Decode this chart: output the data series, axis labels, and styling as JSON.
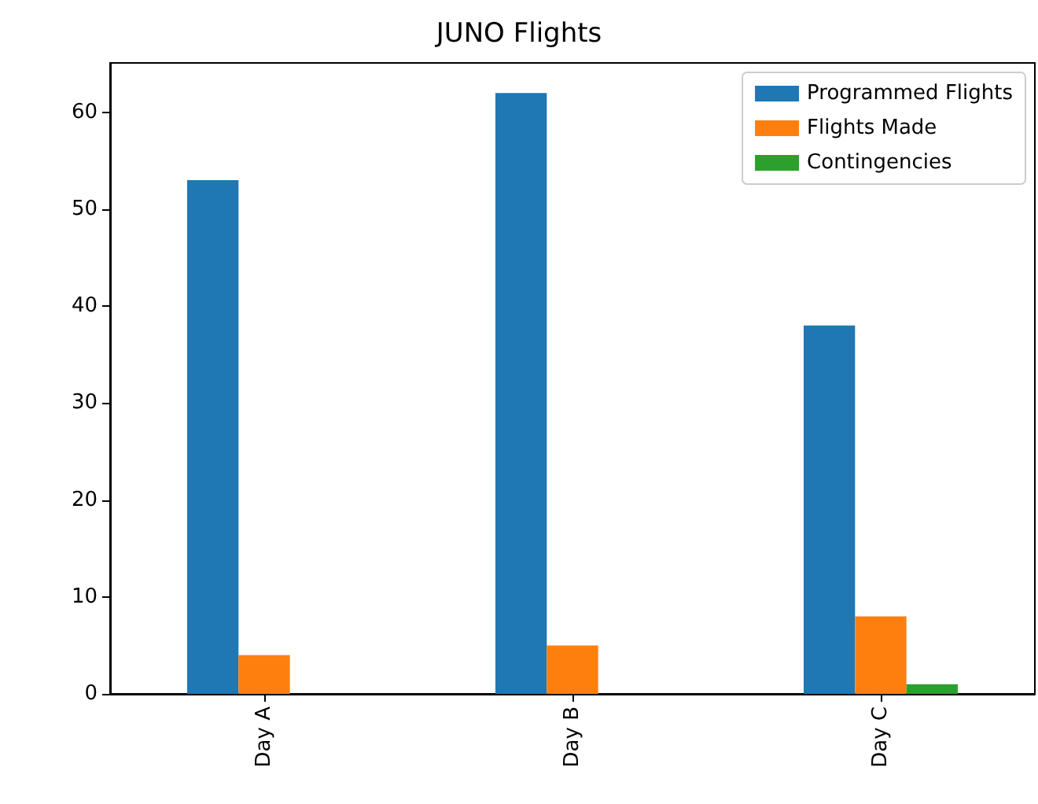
{
  "chart_data": {
    "type": "bar",
    "title": "JUNO Flights",
    "categories": [
      "Day A",
      "Day B",
      "Day C"
    ],
    "series": [
      {
        "name": "Programmed Flights",
        "color": "#1f77b4",
        "values": [
          53,
          62,
          38
        ]
      },
      {
        "name": "Flights Made",
        "color": "#ff7f0e",
        "values": [
          4,
          5,
          8
        ]
      },
      {
        "name": "Contingencies",
        "color": "#2ca02c",
        "values": [
          0,
          0,
          1
        ]
      }
    ],
    "ylim": [
      0,
      65.1
    ],
    "yticks": [
      0,
      10,
      20,
      30,
      40,
      50,
      60
    ],
    "grid": false,
    "legend": "top right"
  }
}
